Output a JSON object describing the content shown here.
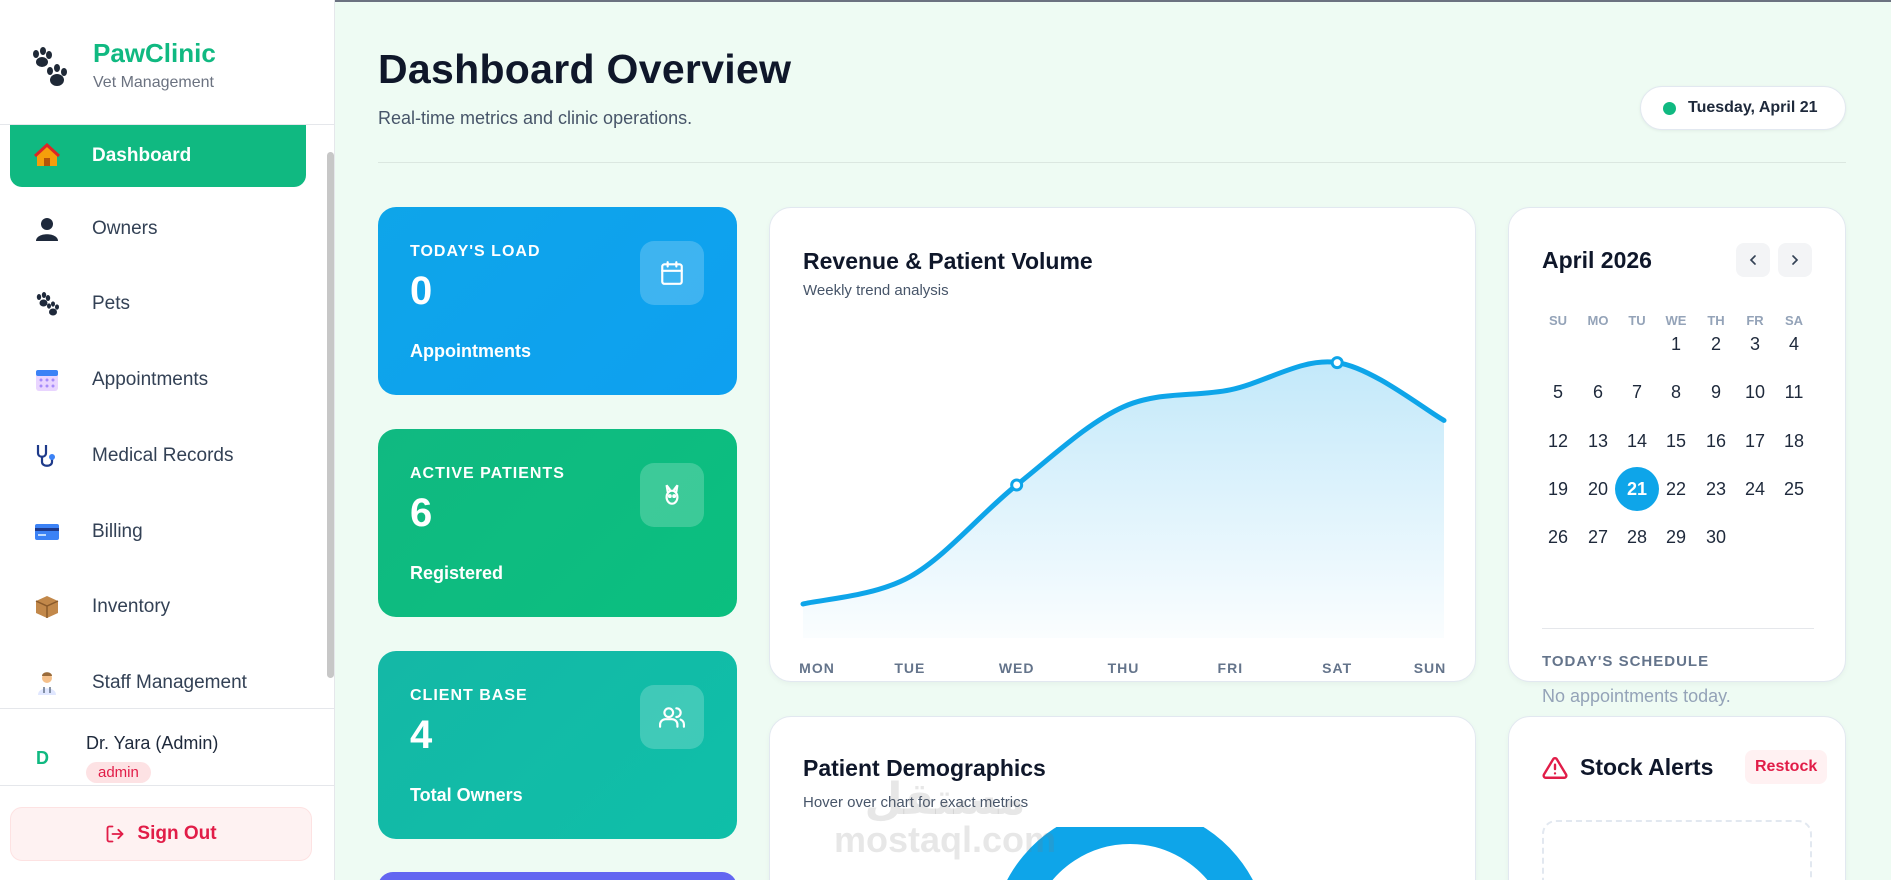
{
  "brand": {
    "name": "PawClinic",
    "subtitle": "Vet Management"
  },
  "nav": [
    {
      "label": "Dashboard",
      "icon": "house-icon",
      "active": true
    },
    {
      "label": "Owners",
      "icon": "person-icon"
    },
    {
      "label": "Pets",
      "icon": "paw-icon"
    },
    {
      "label": "Appointments",
      "icon": "calendar-icon"
    },
    {
      "label": "Medical Records",
      "icon": "stethoscope-icon"
    },
    {
      "label": "Billing",
      "icon": "credit-card-icon"
    },
    {
      "label": "Inventory",
      "icon": "package-icon"
    },
    {
      "label": "Staff Management",
      "icon": "staff-icon"
    }
  ],
  "user": {
    "initial": "D",
    "name": "Dr. Yara (Admin)",
    "role": "admin"
  },
  "signout_label": "Sign Out",
  "header": {
    "title": "Dashboard Overview",
    "subtitle": "Real-time metrics and clinic operations.",
    "date": "Tuesday, April 21"
  },
  "stats": [
    {
      "label": "TODAY'S LOAD",
      "value": "0",
      "caption": "Appointments",
      "icon": "calendar-icon",
      "color": "#0ea5e9"
    },
    {
      "label": "ACTIVE PATIENTS",
      "value": "6",
      "caption": "Registered",
      "icon": "pet-icon",
      "color": "#10b981"
    },
    {
      "label": "CLIENT BASE",
      "value": "4",
      "caption": "Total Owners",
      "icon": "users-icon",
      "color": "#14b8a6"
    }
  ],
  "revenue_card": {
    "title": "Revenue & Patient Volume",
    "subtitle": "Weekly trend analysis"
  },
  "chart_data": {
    "type": "area",
    "title": "Revenue & Patient Volume",
    "subtitle": "Weekly trend analysis",
    "categories": [
      "MON",
      "TUE",
      "WED",
      "THU",
      "FRI",
      "SAT",
      "SUN"
    ],
    "values": [
      10,
      18,
      45,
      68,
      73,
      81,
      64
    ],
    "ylim": [
      0,
      100
    ],
    "grid": false,
    "color": "#0ea5e9"
  },
  "calendar": {
    "month_label": "April 2026",
    "dow": [
      "SU",
      "MO",
      "TU",
      "WE",
      "TH",
      "FR",
      "SA"
    ],
    "first_weekday": 3,
    "days_in_month": 30,
    "today": 21,
    "schedule_title": "TODAY'S SCHEDULE",
    "schedule_empty": "No appointments today."
  },
  "demographics": {
    "title": "Patient Demographics",
    "subtitle": "Hover over chart for exact metrics"
  },
  "stock": {
    "title": "Stock Alerts",
    "action": "Restock"
  },
  "watermark": {
    "arabic": "مستقل",
    "latin": "mostaql.com"
  }
}
